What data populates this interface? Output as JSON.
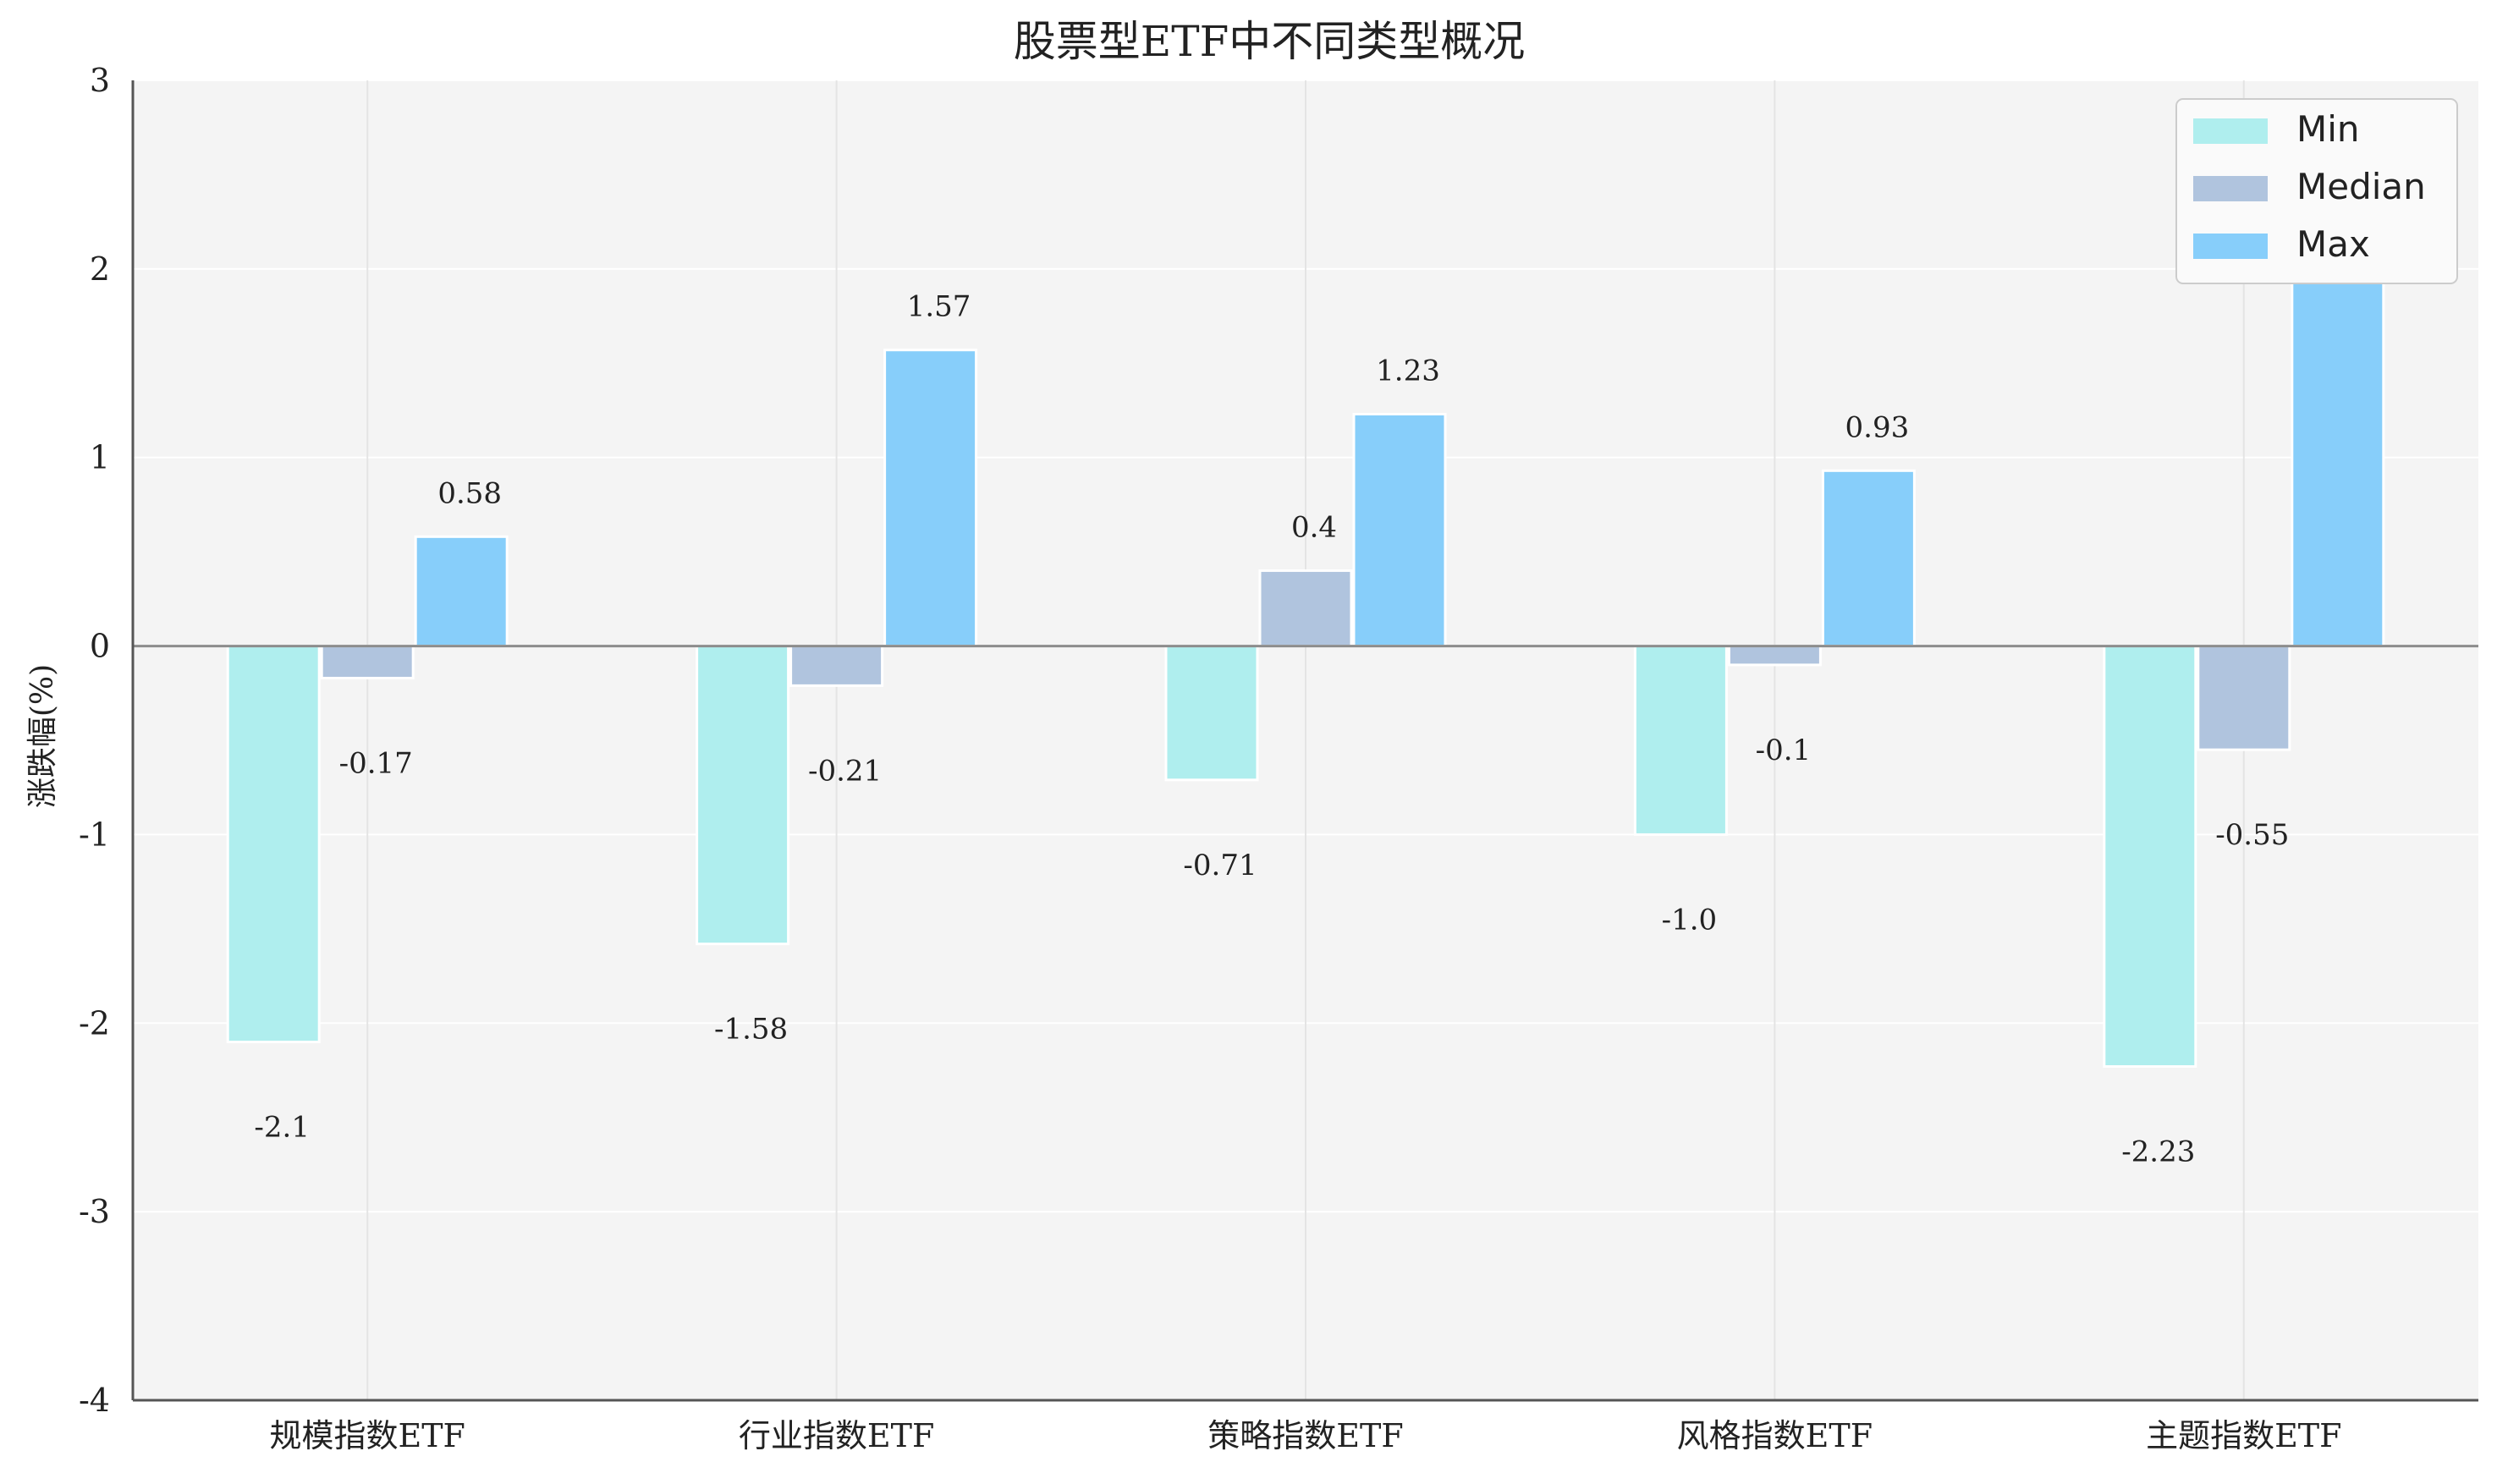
{
  "chart_data": {
    "type": "bar",
    "title": "股票型ETF中不同类型概况",
    "xlabel": "",
    "ylabel": "涨跌幅(%)",
    "ylim": [
      -4,
      3
    ],
    "yticks": [
      "3",
      "2",
      "1",
      "0",
      "-1",
      "-2",
      "-3",
      "-4"
    ],
    "categories": [
      "规模指数ETF",
      "行业指数ETF",
      "策略指数ETF",
      "风格指数ETF",
      "主题指数ETF"
    ],
    "series": [
      {
        "name": "Min",
        "color": "#AFEEEE",
        "values": [
          -2.1,
          -1.58,
          -0.71,
          -1.0,
          -2.23
        ],
        "labels": [
          "-2.1",
          "-1.58",
          "-0.71",
          "-1.0",
          "-2.23"
        ]
      },
      {
        "name": "Median",
        "color": "#B0C4DE",
        "values": [
          -0.17,
          -0.21,
          0.4,
          -0.1,
          -0.55
        ],
        "labels": [
          "-0.17",
          "-0.21",
          "0.4",
          "-0.1",
          "-0.55"
        ]
      },
      {
        "name": "Max",
        "color": "#87CEFA",
        "values": [
          0.58,
          1.57,
          1.23,
          0.93,
          1.94
        ],
        "labels": [
          "0.58",
          "1.57",
          "1.23",
          "0.93",
          "1.94"
        ]
      }
    ],
    "grid": true,
    "legend_position": "top-right",
    "colors": {
      "plot_background": "#F4F4F4",
      "zero_line": "#8C8C8C",
      "axis": "#555555",
      "grid": "#FFFFFF",
      "vertical_grid": "#E4E4E4"
    }
  }
}
